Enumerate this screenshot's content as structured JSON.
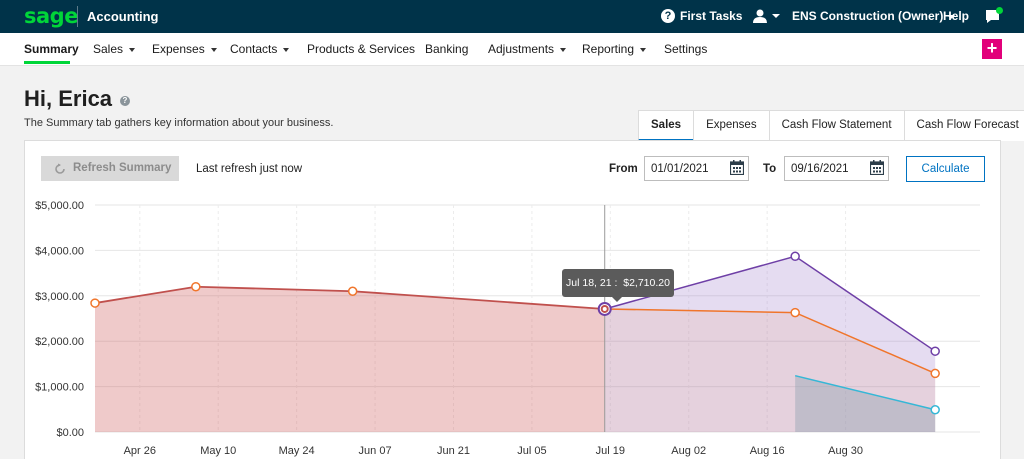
{
  "topbar": {
    "logo": "sage",
    "app_name": "Accounting",
    "first_tasks": "First Tasks",
    "company": "ENS Construction (Owner)",
    "help": "Help"
  },
  "nav": {
    "items": [
      {
        "label": "Summary",
        "active": true,
        "dropdown": false
      },
      {
        "label": "Sales",
        "dropdown": true
      },
      {
        "label": "Expenses",
        "dropdown": true
      },
      {
        "label": "Contacts",
        "dropdown": true
      },
      {
        "label": "Products & Services",
        "dropdown": false
      },
      {
        "label": "Banking",
        "dropdown": false
      },
      {
        "label": "Adjustments",
        "dropdown": true
      },
      {
        "label": "Reporting",
        "dropdown": true
      },
      {
        "label": "Settings",
        "dropdown": false
      }
    ],
    "add_label": "+"
  },
  "header": {
    "greeting": "Hi, Erica",
    "subtitle": "The Summary tab gathers key information about your business."
  },
  "tabs": [
    "Sales",
    "Expenses",
    "Cash Flow Statement",
    "Cash Flow Forecast"
  ],
  "controls": {
    "refresh_label": "Refresh Summary",
    "last_refresh": "Last refresh just now",
    "from_label": "From",
    "from_value": "01/01/2021",
    "to_label": "To",
    "to_value": "09/16/2021",
    "calculate_label": "Calculate"
  },
  "tooltip": {
    "date": "Jul 18, 21 :",
    "value": "$2,710.20"
  },
  "colors": {
    "topbar": "#003349",
    "brand_green": "#00d639",
    "accent_blue": "#0073c2",
    "add_button": "#e2007a",
    "series_red": "#c0504d",
    "series_orange": "#f0752b",
    "series_purple": "#6e3fa6",
    "series_cyan": "#35b7d6"
  },
  "chart_data": {
    "type": "area",
    "y_ticks": [
      "$5,000.00",
      "$4,000.00",
      "$3,000.00",
      "$2,000.00",
      "$1,000.00",
      "$0.00"
    ],
    "ylim": [
      0,
      5000
    ],
    "x_ticks": [
      "Apr 26",
      "May 10",
      "May 24",
      "Jun 07",
      "Jun 21",
      "Jul 05",
      "Jul 19",
      "Aug 02",
      "Aug 16",
      "Aug 30"
    ],
    "xlim": [
      "2021-04-18",
      "2021-09-23"
    ],
    "series": [
      {
        "points": [
          [
            "2021-04-18",
            2840
          ],
          [
            "2021-05-06",
            3200
          ],
          [
            "2021-06-03",
            3100
          ],
          [
            "2021-07-18",
            2710
          ]
        ]
      },
      {
        "points": [
          [
            "2021-07-18",
            2710
          ],
          [
            "2021-08-21",
            3870
          ],
          [
            "2021-09-15",
            1780
          ]
        ]
      },
      {
        "points": [
          [
            "2021-07-18",
            2710
          ],
          [
            "2021-08-21",
            2630
          ],
          [
            "2021-09-15",
            1290
          ]
        ]
      },
      {
        "points": [
          [
            "2021-08-21",
            1240
          ],
          [
            "2021-09-15",
            490
          ]
        ]
      }
    ],
    "highlight": [
      "2021-07-18",
      2710.2
    ]
  }
}
